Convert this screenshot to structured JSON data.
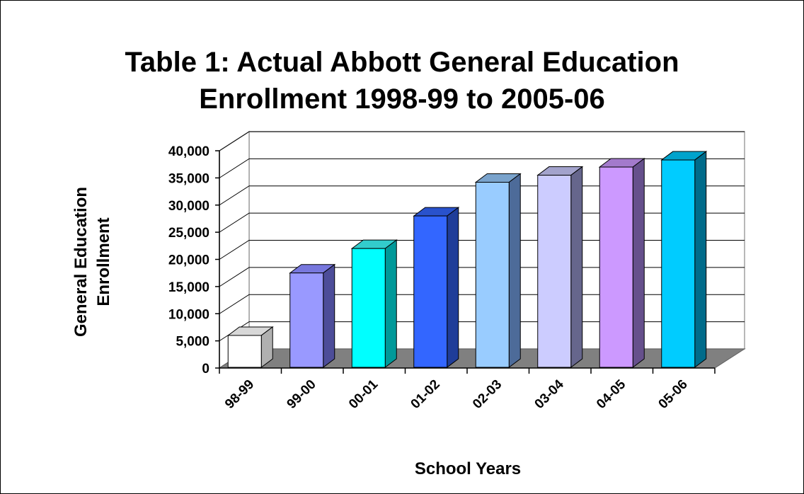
{
  "chart_data": {
    "type": "bar",
    "title_lines": [
      "Table 1: Actual Abbott General Education",
      "Enrollment 1998-99 to 2005-06"
    ],
    "xlabel": "School Years",
    "ylabel_lines": [
      "General Education",
      "Enrollment"
    ],
    "categories": [
      "98-99",
      "99-00",
      "00-01",
      "01-02",
      "02-03",
      "03-04",
      "04-05",
      "05-06"
    ],
    "values": [
      6000,
      17500,
      22000,
      28000,
      34200,
      35500,
      37000,
      38300
    ],
    "ylim": [
      0,
      40000
    ],
    "yticks": [
      0,
      5000,
      10000,
      15000,
      20000,
      25000,
      30000,
      35000,
      40000
    ],
    "ytick_labels": [
      "0",
      "5,000",
      "10,000",
      "15,000",
      "20,000",
      "25,000",
      "30,000",
      "35,000",
      "40,000"
    ],
    "grid": true,
    "bar_colors": [
      {
        "front": "#ffffff",
        "side": "#b0b0b0",
        "top": "#d8d8d8"
      },
      {
        "front": "#9999ff",
        "side": "#4d4d99",
        "top": "#7777dd"
      },
      {
        "front": "#00ffff",
        "side": "#009999",
        "top": "#33cccc"
      },
      {
        "front": "#3366ff",
        "side": "#1f3d99",
        "top": "#2952cc"
      },
      {
        "front": "#99ccff",
        "side": "#4d6b99",
        "top": "#7aa3cc"
      },
      {
        "front": "#ccccff",
        "side": "#66668c",
        "top": "#a3a3cc"
      },
      {
        "front": "#cc99ff",
        "side": "#66508c",
        "top": "#a37acc"
      },
      {
        "front": "#00ccff",
        "side": "#006b8a",
        "top": "#00a3cc"
      }
    ],
    "floor_color": "#808080"
  }
}
